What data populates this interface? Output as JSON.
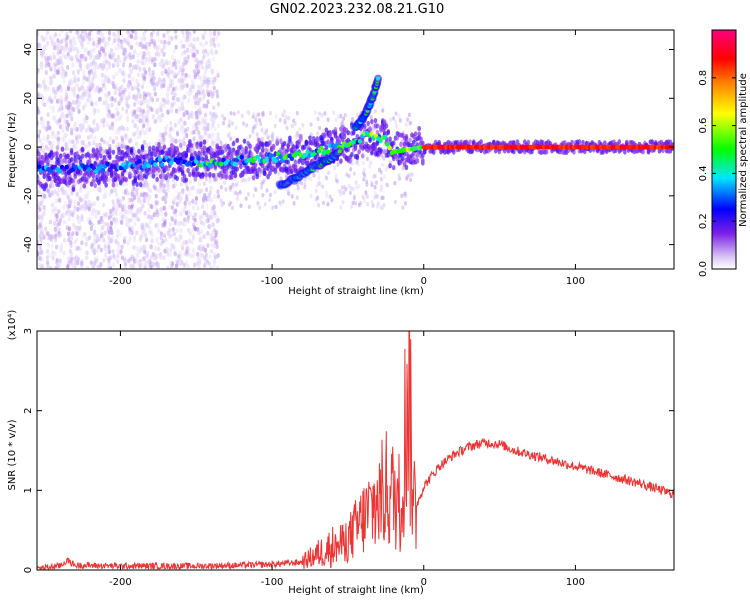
{
  "title": "GN02.2023.232.08.21.G10",
  "colors": {
    "axis": "#000000",
    "snr_line": "#ee3333",
    "colormap": [
      "#ffffff",
      "#e9e1f8",
      "#7b1fe6",
      "#0000ff",
      "#00e5ff",
      "#00ff00",
      "#ffff00",
      "#ff8000",
      "#ff0000",
      "#ff0080"
    ]
  },
  "chart_data": [
    {
      "type": "heatmap",
      "xlabel": "Height of straight line (km)",
      "ylabel": "Frequency (Hz)",
      "xlim": [
        -255,
        165
      ],
      "ylim": [
        -50,
        48
      ],
      "xticks": [
        -200,
        -100,
        0,
        100
      ],
      "yticks": [
        -40,
        -20,
        0,
        20,
        40
      ],
      "colorbar": {
        "label": "Normalized spectral amplitude",
        "range": [
          0,
          1
        ],
        "ticks": [
          "0.0",
          "0.2",
          "0.4",
          "0.6",
          "0.8"
        ]
      },
      "ridge": {
        "description_points": [
          {
            "x": -250,
            "y": -9
          },
          {
            "x": -230,
            "y": -9
          },
          {
            "x": -200,
            "y": -8
          },
          {
            "x": -170,
            "y": -6
          },
          {
            "x": -140,
            "y": -6
          },
          {
            "x": -110,
            "y": -5
          },
          {
            "x": -90,
            "y": -4
          },
          {
            "x": -70,
            "y": -2
          },
          {
            "x": -50,
            "y": 2
          },
          {
            "x": -35,
            "y": 5
          },
          {
            "x": -25,
            "y": 3
          },
          {
            "x": -20,
            "y": -2
          },
          {
            "x": -10,
            "y": -1
          },
          {
            "x": 0,
            "y": 0
          },
          {
            "x": 100,
            "y": 0
          },
          {
            "x": 165,
            "y": 0
          }
        ],
        "branch_upper": [
          {
            "x": -45,
            "y": 8
          },
          {
            "x": -38,
            "y": 14
          },
          {
            "x": -34,
            "y": 20
          },
          {
            "x": -30,
            "y": 28
          }
        ],
        "branch_lower": [
          {
            "x": -95,
            "y": -16
          },
          {
            "x": -85,
            "y": -13
          },
          {
            "x": -75,
            "y": -9
          },
          {
            "x": -65,
            "y": -6
          },
          {
            "x": -55,
            "y": -2
          }
        ]
      }
    },
    {
      "type": "line",
      "xlabel": "Height of straight line (km)",
      "ylabel": "SNR (10 * v/v)",
      "y_multiplier": "(x10⁴)",
      "xlim": [
        -255,
        165
      ],
      "ylim": [
        0,
        3
      ],
      "xticks": [
        -200,
        -100,
        0,
        100
      ],
      "yticks": [
        0,
        1,
        2,
        3
      ],
      "series": [
        {
          "color": "#ee3333",
          "x": [
            -255,
            -240,
            -235,
            -230,
            -200,
            -150,
            -120,
            -100,
            -80,
            -70,
            -60,
            -50,
            -45,
            -40,
            -35,
            -30,
            -25,
            -20,
            -15,
            -12,
            -10,
            -8,
            -5,
            0,
            10,
            20,
            30,
            40,
            50,
            60,
            80,
            100,
            120,
            140,
            165
          ],
          "y": [
            0.02,
            0.05,
            0.12,
            0.06,
            0.05,
            0.05,
            0.06,
            0.07,
            0.1,
            0.2,
            0.3,
            0.45,
            0.6,
            0.75,
            0.9,
            1.0,
            1.2,
            1.1,
            1.0,
            2.2,
            3.0,
            1.5,
            0.8,
            1.05,
            1.3,
            1.45,
            1.55,
            1.6,
            1.58,
            1.5,
            1.4,
            1.3,
            1.2,
            1.1,
            0.95
          ]
        }
      ]
    }
  ]
}
